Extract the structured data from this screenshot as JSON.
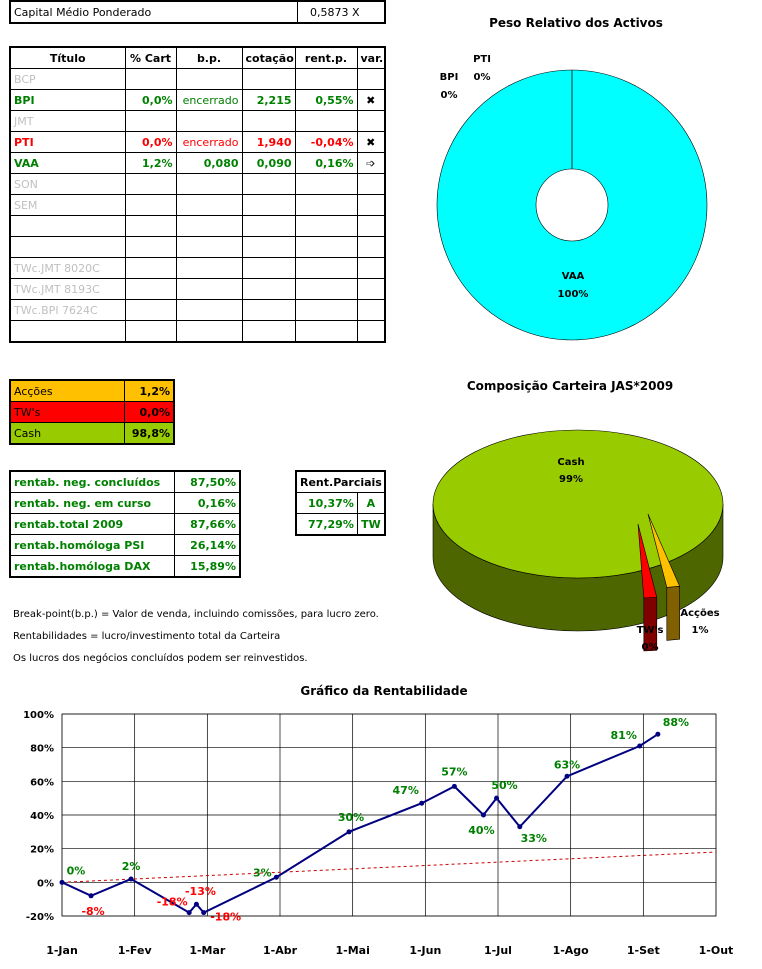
{
  "capital": {
    "label": "Capital Médio Ponderado",
    "value": "0,5873 X"
  },
  "holdings": {
    "headers": [
      "Título",
      "% Cart",
      "b.p.",
      "cotação",
      "rent.p.",
      "var."
    ],
    "rows": [
      {
        "name": "BCP",
        "pct": "",
        "bp": "",
        "quote": "",
        "rent": "",
        "var": "",
        "style": "grey"
      },
      {
        "name": "BPI",
        "pct": "0,0%",
        "bp": "encerrado",
        "quote": "2,215",
        "rent": "0,55%",
        "var": "✖",
        "style": "green"
      },
      {
        "name": "JMT",
        "pct": "",
        "bp": "",
        "quote": "",
        "rent": "",
        "var": "",
        "style": "grey"
      },
      {
        "name": "PTI",
        "pct": "0,0%",
        "bp": "encerrado",
        "quote": "1,940",
        "rent": "-0,04%",
        "var": "✖",
        "style": "red"
      },
      {
        "name": "VAA",
        "pct": "1,2%",
        "bp": "0,080",
        "quote": "0,090",
        "rent": "0,16%",
        "var": "➩",
        "style": "green"
      },
      {
        "name": "SON",
        "pct": "",
        "bp": "",
        "quote": "",
        "rent": "",
        "var": "",
        "style": "grey"
      },
      {
        "name": "SEM",
        "pct": "",
        "bp": "",
        "quote": "",
        "rent": "",
        "var": "",
        "style": "grey"
      },
      {
        "name": "",
        "pct": "",
        "bp": "",
        "quote": "",
        "rent": "",
        "var": "",
        "style": "grey"
      },
      {
        "name": "",
        "pct": "",
        "bp": "",
        "quote": "",
        "rent": "",
        "var": "",
        "style": "grey"
      },
      {
        "name": "TWc.JMT 8020C",
        "pct": "",
        "bp": "",
        "quote": "",
        "rent": "",
        "var": "",
        "style": "grey"
      },
      {
        "name": "TWc.JMT 8193C",
        "pct": "",
        "bp": "",
        "quote": "",
        "rent": "",
        "var": "",
        "style": "grey"
      },
      {
        "name": "TWc.BPI 7624C",
        "pct": "",
        "bp": "",
        "quote": "",
        "rent": "",
        "var": "",
        "style": "grey"
      },
      {
        "name": "",
        "pct": "",
        "bp": "",
        "quote": "",
        "rent": "",
        "var": "",
        "style": "grey"
      }
    ]
  },
  "allocation": [
    {
      "label": "Acções",
      "value": "1,2%",
      "color": "#ffc000"
    },
    {
      "label": "TW's",
      "value": "0,0%",
      "color": "#ff0000"
    },
    {
      "label": "Cash",
      "value": "98,8%",
      "color": "#99cc00"
    }
  ],
  "returns": [
    {
      "label": "rentab. neg. concluídos",
      "value": "87,50%"
    },
    {
      "label": "rentab. neg. em curso",
      "value": "0,16%"
    },
    {
      "label": "rentab.total 2009",
      "value": "87,66%"
    },
    {
      "label": "rentab.homóloga PSI",
      "value": "26,14%"
    },
    {
      "label": "rentab.homóloga DAX",
      "value": "15,89%"
    }
  ],
  "partials": {
    "header": "Rent.Parciais",
    "rows": [
      {
        "value": "10,37%",
        "tag": "A"
      },
      {
        "value": "77,29%",
        "tag": "TW"
      }
    ]
  },
  "notes": [
    "Break-point(b.p.) = Valor de venda, incluindo comissões, para lucro zero.",
    "Rentabilidades = lucro/investimento total da Carteira",
    "Os lucros dos negócios concluídos podem ser reinvestidos."
  ],
  "chart_data": [
    {
      "type": "pie",
      "variant": "doughnut",
      "title": "Peso Relativo dos Activos",
      "slices": [
        {
          "label": "BPI",
          "value": 0,
          "display": "0%",
          "color": "#00ffff"
        },
        {
          "label": "PTI",
          "value": 0,
          "display": "0%",
          "color": "#00ffff"
        },
        {
          "label": "VAA",
          "value": 100,
          "display": "100%",
          "color": "#00ffff"
        }
      ]
    },
    {
      "type": "pie",
      "variant": "3d",
      "title": "Composição Carteira JAS*2009",
      "slices": [
        {
          "label": "Cash",
          "value": 98.8,
          "display": "99%",
          "color": "#99cc00"
        },
        {
          "label": "Acções",
          "value": 1.2,
          "display": "1%",
          "color": "#ffc000"
        },
        {
          "label": "TW's",
          "value": 0.0,
          "display": "0%",
          "color": "#ff0000"
        }
      ]
    },
    {
      "type": "line",
      "title": "Gráfico da Rentabilidade",
      "categories": [
        "1-Jan",
        "1-Fev",
        "1-Mar",
        "1-Abr",
        "1-Mai",
        "1-Jun",
        "1-Jul",
        "1-Ago",
        "1-Set",
        "1-Out"
      ],
      "ylim": [
        -20,
        100
      ],
      "yticks": [
        "-20%",
        "0%",
        "20%",
        "40%",
        "60%",
        "80%",
        "100%"
      ],
      "series": [
        {
          "name": "Rentabilidade",
          "color": "#000080",
          "points": [
            {
              "x": 0.0,
              "y": 0,
              "label": "0%",
              "labelColor": "#008000"
            },
            {
              "x": 0.4,
              "y": -8,
              "label": "-8%",
              "labelColor": "#ff0000"
            },
            {
              "x": 0.95,
              "y": 2,
              "label": "2%",
              "labelColor": "#008000"
            },
            {
              "x": 1.75,
              "y": -18,
              "label": "-18%",
              "labelColor": "#ff0000"
            },
            {
              "x": 1.85,
              "y": -13,
              "label": "-13%",
              "labelColor": "#ff0000"
            },
            {
              "x": 1.95,
              "y": -18,
              "label": "-18%",
              "labelColor": "#ff0000"
            },
            {
              "x": 2.95,
              "y": 3,
              "label": "3%",
              "labelColor": "#008000"
            },
            {
              "x": 3.95,
              "y": 30,
              "label": "30%",
              "labelColor": "#008000"
            },
            {
              "x": 4.95,
              "y": 47,
              "label": "47%",
              "labelColor": "#008000"
            },
            {
              "x": 5.4,
              "y": 57,
              "label": "57%",
              "labelColor": "#008000"
            },
            {
              "x": 5.8,
              "y": 40,
              "label": "40%",
              "labelColor": "#008000"
            },
            {
              "x": 5.98,
              "y": 50,
              "label": "50%",
              "labelColor": "#008000"
            },
            {
              "x": 6.3,
              "y": 33,
              "label": "33%",
              "labelColor": "#008000"
            },
            {
              "x": 6.95,
              "y": 63,
              "label": "63%",
              "labelColor": "#008000"
            },
            {
              "x": 7.95,
              "y": 81,
              "label": "81%",
              "labelColor": "#008000"
            },
            {
              "x": 8.2,
              "y": 88,
              "label": "88%",
              "labelColor": "#008000"
            }
          ]
        },
        {
          "name": "Tendência",
          "color": "#cc0000",
          "dashed": true,
          "points": [
            {
              "x": 0,
              "y": 0
            },
            {
              "x": 9,
              "y": 18
            }
          ]
        }
      ]
    }
  ]
}
